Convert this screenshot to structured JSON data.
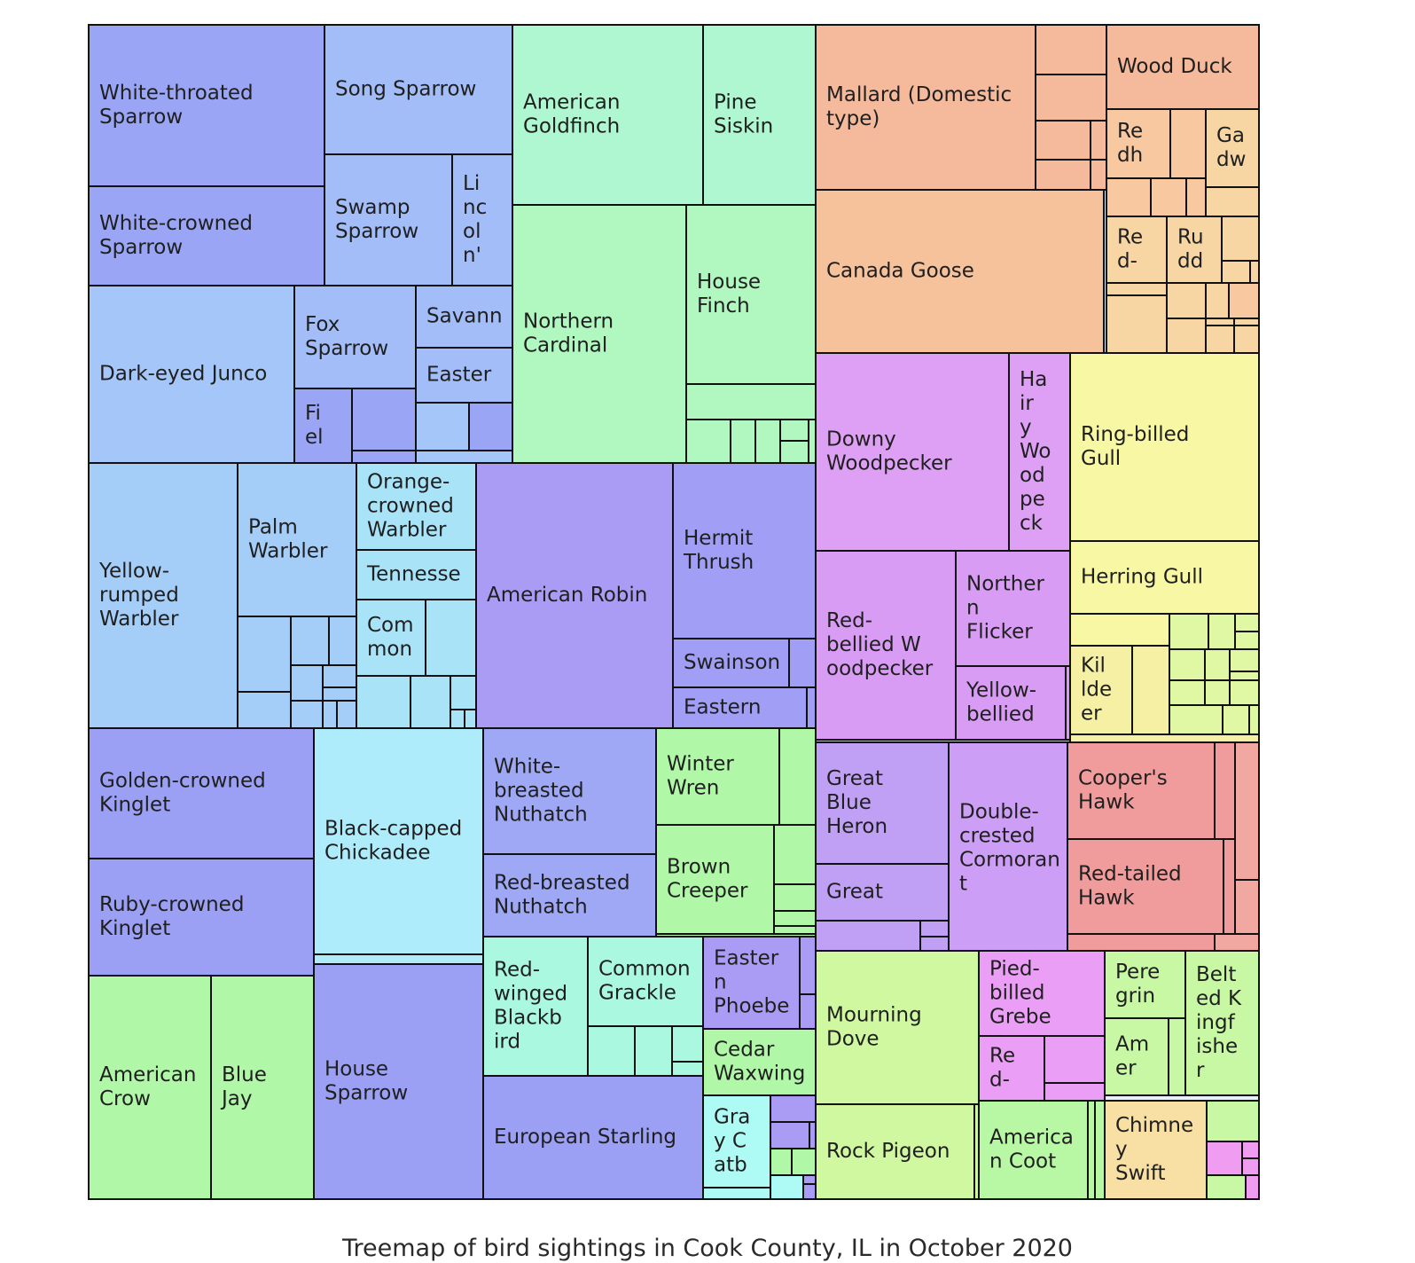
{
  "caption": "Treemap of bird sightings in Cook County, IL in October 2020",
  "chart_data": {
    "type": "treemap",
    "title": "",
    "labeled_tiles": [
      {
        "label": "White-throated\nSparrow",
        "color": "#9aa6f5"
      },
      {
        "label": "White-crowned\nSparrow",
        "color": "#9aa6f5"
      },
      {
        "label": "Song Sparrow",
        "color": "#a2bdf8"
      },
      {
        "label": "Swamp\nSparrow",
        "color": "#a2bdf8"
      },
      {
        "label": "Li\nnc\nol\nn'",
        "color": "#a2bdf8"
      },
      {
        "label": "Dark-eyed Junco",
        "color": "#a4c6f8"
      },
      {
        "label": "Fox\nSparrow",
        "color": "#a2bdf8"
      },
      {
        "label": "Savann",
        "color": "#a2bdf8"
      },
      {
        "label": "Easter",
        "color": "#a2bdf8"
      },
      {
        "label": "Fi\nel",
        "color": "#9aa6f5"
      },
      {
        "label": "American\nGoldfinch",
        "color": "#aff7d0"
      },
      {
        "label": "Pine\nSiskin",
        "color": "#aff7d0"
      },
      {
        "label": "Northern\nCardinal",
        "color": "#b0f8c0"
      },
      {
        "label": "House\nFinch",
        "color": "#b0f8c0"
      },
      {
        "label": "Yellow-\nrumped\nWarbler",
        "color": "#a4cdf8"
      },
      {
        "label": "Palm\nWarbler",
        "color": "#a4cdf8"
      },
      {
        "label": "Orange-\ncrowned\nWarbler",
        "color": "#a8e3f8"
      },
      {
        "label": "Tennesse",
        "color": "#a8e3f8"
      },
      {
        "label": "Com\nmon",
        "color": "#a8e3f8"
      },
      {
        "label": "American Robin",
        "color": "#aa9cf5"
      },
      {
        "label": "Hermit\nThrush",
        "color": "#a09ef5"
      },
      {
        "label": "Swainson",
        "color": "#a09ef5"
      },
      {
        "label": "Eastern",
        "color": "#a09ef5"
      },
      {
        "label": "Golden-crowned\nKinglet",
        "color": "#9ca0f5"
      },
      {
        "label": "Ruby-crowned\nKinglet",
        "color": "#9ca0f5"
      },
      {
        "label": "Black-capped\nChickadee",
        "color": "#aeecfb"
      },
      {
        "label": "White-\nbreasted\nNuthatch",
        "color": "#9ea8f5"
      },
      {
        "label": "Red-breasted\nNuthatch",
        "color": "#9ea8f5"
      },
      {
        "label": "Winter\nWren",
        "color": "#b0f8a8"
      },
      {
        "label": "Brown\nCreeper",
        "color": "#b0f8a8"
      },
      {
        "label": "American\nCrow",
        "color": "#b0f8a8"
      },
      {
        "label": "Blue\nJay",
        "color": "#b0f8a8"
      },
      {
        "label": "House\nSparrow",
        "color": "#9ca0f5"
      },
      {
        "label": "Red-\nwinged\nBlackb\nird",
        "color": "#aaf8e0"
      },
      {
        "label": "Common\nGrackle",
        "color": "#aaf8e0"
      },
      {
        "label": "Easter\nn\nPhoebe",
        "color": "#aa9cf5"
      },
      {
        "label": "Cedar\nWaxwing",
        "color": "#b0f8a8"
      },
      {
        "label": "European Starling",
        "color": "#9ca0f5"
      },
      {
        "label": "Gra\ny C\natb",
        "color": "#aefaf5"
      },
      {
        "label": "Mallard (Domestic\ntype)",
        "color": "#f5b99c"
      },
      {
        "label": "Wood Duck",
        "color": "#f5b99c"
      },
      {
        "label": "Re\ndh",
        "color": "#f8c8a0"
      },
      {
        "label": "Ga\ndw",
        "color": "#f8d6a4"
      },
      {
        "label": "Re\nd-",
        "color": "#f8d6a4"
      },
      {
        "label": "Ru\ndd",
        "color": "#f8d6a4"
      },
      {
        "label": "Canada Goose",
        "color": "#f5c29c"
      },
      {
        "label": "Downy\nWoodpecker",
        "color": "#dea0f5"
      },
      {
        "label": "Ha\nir\ny\nWo\nod\npe\nck",
        "color": "#dea0f5"
      },
      {
        "label": "Ring-billed\nGull",
        "color": "#f8f8a4"
      },
      {
        "label": "Red-\nbellied W\noodpecker",
        "color": "#d99cf5"
      },
      {
        "label": "Norther\nn\nFlicker",
        "color": "#d99cf5"
      },
      {
        "label": "Yellow-\nbellied",
        "color": "#d99cf5"
      },
      {
        "label": "Herring Gull",
        "color": "#f8f8a4"
      },
      {
        "label": "Kil\nlde\ner",
        "color": "#f5f0a4"
      },
      {
        "label": "Great\nBlue\nHeron",
        "color": "#c0a0f5"
      },
      {
        "label": "Great",
        "color": "#c0a0f5"
      },
      {
        "label": "Double-\ncrested\nCormoran\nt",
        "color": "#cc9ef5"
      },
      {
        "label": "Cooper's\nHawk",
        "color": "#f09c9c"
      },
      {
        "label": "Red-tailed\nHawk",
        "color": "#f09c9c"
      },
      {
        "label": "Mourning\nDove",
        "color": "#d0f8a0"
      },
      {
        "label": "Rock Pigeon",
        "color": "#d0f8a0"
      },
      {
        "label": "Pied-\nbilled\nGrebe",
        "color": "#ea9ef5"
      },
      {
        "label": "Re\nd-",
        "color": "#ea9ef5"
      },
      {
        "label": "Pere\ngrin",
        "color": "#c8f8a4"
      },
      {
        "label": "Am\ner",
        "color": "#c8f8a4"
      },
      {
        "label": "Belt\ned K\ningf\nishe\nr",
        "color": "#c8f8a4"
      },
      {
        "label": "America\nn Coot",
        "color": "#b8f8a4"
      },
      {
        "label": "Chimne\ny\nSwift",
        "color": "#f8e0a4"
      }
    ]
  }
}
